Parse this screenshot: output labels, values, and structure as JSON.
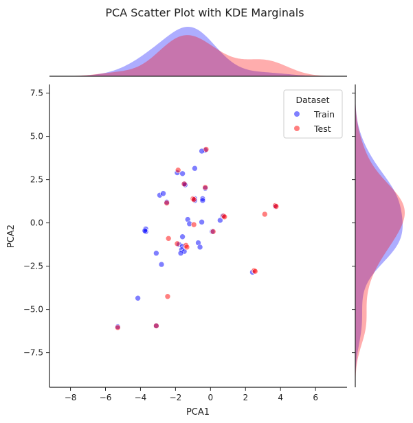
{
  "chart_data": {
    "type": "scatter",
    "title": "PCA Scatter Plot with KDE Marginals",
    "xlabel": "PCA1",
    "ylabel": "PCA2",
    "xlim": [
      -9.2,
      7.8
    ],
    "ylim": [
      -9.5,
      8.0
    ],
    "xticks": [
      -8,
      -6,
      -4,
      -2,
      0,
      2,
      4,
      6
    ],
    "xtick_labels": [
      "−8",
      "−6",
      "−4",
      "−2",
      "0",
      "2",
      "4",
      "6"
    ],
    "yticks": [
      -7.5,
      -5.0,
      -2.5,
      0.0,
      2.5,
      5.0,
      7.5
    ],
    "ytick_labels": [
      "−7.5",
      "−5.0",
      "−2.5",
      "0.0",
      "2.5",
      "5.0",
      "7.5"
    ],
    "grid": false,
    "legend": {
      "title": "Dataset",
      "position": "top-right"
    },
    "series": [
      {
        "name": "Train",
        "color": "#0000ff",
        "points": [
          [
            -0.3,
            4.2
          ],
          [
            -0.5,
            4.15
          ],
          [
            -0.9,
            3.15
          ],
          [
            -1.9,
            2.9
          ],
          [
            -1.6,
            2.85
          ],
          [
            -1.5,
            2.25
          ],
          [
            -1.45,
            2.2
          ],
          [
            -0.3,
            2.0
          ],
          [
            -2.9,
            1.6
          ],
          [
            -2.7,
            1.7
          ],
          [
            -2.5,
            1.2
          ],
          [
            -0.9,
            1.4
          ],
          [
            -0.9,
            1.3
          ],
          [
            -0.45,
            1.4
          ],
          [
            -0.45,
            1.3
          ],
          [
            -0.5,
            0.05
          ],
          [
            -1.3,
            0.2
          ],
          [
            -1.2,
            -0.05
          ],
          [
            0.55,
            0.15
          ],
          [
            -3.7,
            -0.35
          ],
          [
            -3.7,
            -0.5
          ],
          [
            -3.75,
            -0.45
          ],
          [
            -1.6,
            -0.8
          ],
          [
            -1.8,
            -1.25
          ],
          [
            -1.6,
            -1.35
          ],
          [
            -1.65,
            -1.55
          ],
          [
            -0.7,
            -1.15
          ],
          [
            -0.6,
            -1.4
          ],
          [
            -1.5,
            -1.65
          ],
          [
            -1.7,
            -1.75
          ],
          [
            -3.1,
            -1.75
          ],
          [
            -2.8,
            -2.4
          ],
          [
            -4.15,
            -4.35
          ],
          [
            2.4,
            -2.85
          ],
          [
            3.7,
            0.95
          ],
          [
            0.7,
            0.4
          ],
          [
            0.1,
            -0.5
          ],
          [
            -5.3,
            -6.0
          ],
          [
            -3.1,
            -5.95
          ]
        ]
      },
      {
        "name": "Test",
        "color": "#ff0000",
        "points": [
          [
            -0.25,
            4.25
          ],
          [
            -1.85,
            3.05
          ],
          [
            -1.5,
            2.25
          ],
          [
            -0.3,
            2.05
          ],
          [
            -2.5,
            1.15
          ],
          [
            -1.0,
            1.4
          ],
          [
            -0.95,
            1.35
          ],
          [
            0.75,
            0.4
          ],
          [
            0.8,
            0.35
          ],
          [
            3.7,
            1.0
          ],
          [
            3.75,
            0.95
          ],
          [
            3.1,
            0.5
          ],
          [
            -0.95,
            -0.1
          ],
          [
            0.15,
            -0.5
          ],
          [
            -2.4,
            -0.9
          ],
          [
            -1.9,
            -1.2
          ],
          [
            -1.4,
            -1.3
          ],
          [
            -1.35,
            -1.4
          ],
          [
            2.5,
            -2.75
          ],
          [
            2.55,
            -2.8
          ],
          [
            -2.45,
            -4.25
          ],
          [
            -5.3,
            -6.05
          ],
          [
            -3.1,
            -5.95
          ]
        ]
      }
    ],
    "marginals": {
      "top": {
        "type": "kde",
        "axis": "x"
      },
      "right": {
        "type": "kde",
        "axis": "y"
      }
    }
  }
}
